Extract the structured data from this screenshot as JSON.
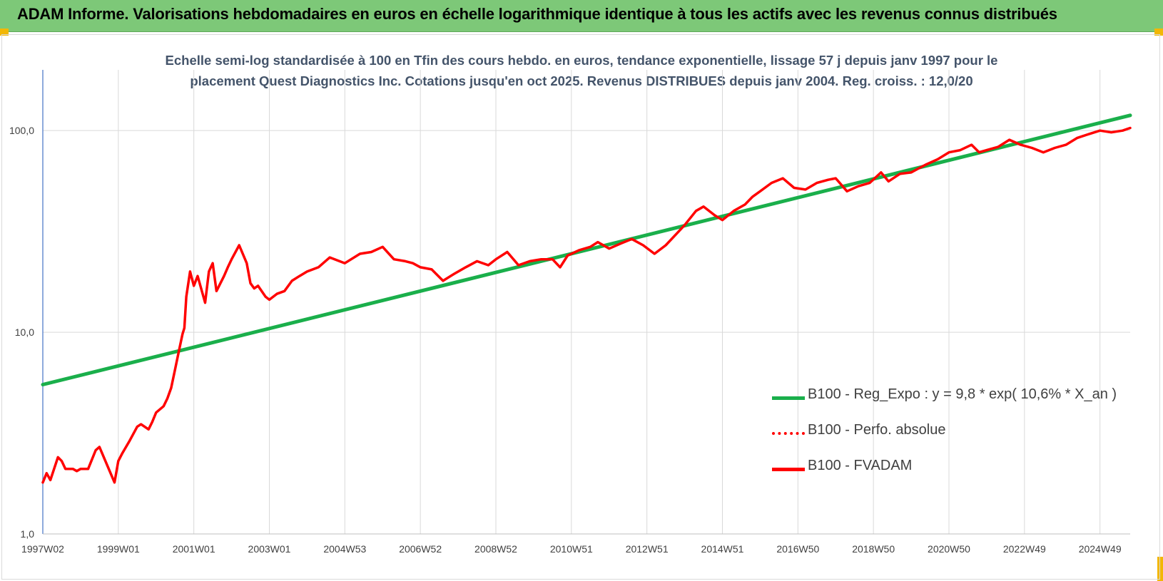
{
  "header": {
    "title": "ADAM Informe. Valorisations hebdomadaires en euros en échelle logarithmique identique à tous les actifs avec les revenus connus distribués"
  },
  "chart_data": {
    "type": "line",
    "title": "Echelle semi-log standardisée à 100 en Tfin des cours hebdo. en euros, tendance exponentielle, lissage 57 j depuis janv 1997 pour le placement Quest Diagnostics Inc. Cotations jusqu'en oct 2025. Revenus DISTRIBUES depuis janv 2004. Reg. croiss. : 12,0/20",
    "title_lines": [
      "Echelle semi-log standardisée à 100 en Tfin des cours hebdo. en euros, tendance exponentielle, lissage 57 j depuis janv 1997 pour le",
      "placement Quest Diagnostics Inc. Cotations jusqu'en oct 2025. Revenus DISTRIBUES depuis janv 2004. Reg. croiss. : 12,0/20"
    ],
    "y_scale": "log",
    "ylim": [
      1,
      200
    ],
    "y_ticks": [
      {
        "value": 1,
        "label": "1,0"
      },
      {
        "value": 10,
        "label": "10,0"
      },
      {
        "value": 100,
        "label": "100,0"
      }
    ],
    "x_start_year": 1997.0,
    "x_end_year": 2025.8,
    "x_ticks": [
      {
        "year": 1997.0,
        "label": "1997W02"
      },
      {
        "year": 1999.0,
        "label": "1999W01"
      },
      {
        "year": 2001.0,
        "label": "2001W01"
      },
      {
        "year": 2003.0,
        "label": "2003W01"
      },
      {
        "year": 2005.0,
        "label": "2004W53"
      },
      {
        "year": 2007.0,
        "label": "2006W52"
      },
      {
        "year": 2009.0,
        "label": "2008W52"
      },
      {
        "year": 2011.0,
        "label": "2010W51"
      },
      {
        "year": 2013.0,
        "label": "2012W51"
      },
      {
        "year": 2015.0,
        "label": "2014W51"
      },
      {
        "year": 2017.0,
        "label": "2016W50"
      },
      {
        "year": 2019.0,
        "label": "2018W50"
      },
      {
        "year": 2021.0,
        "label": "2020W50"
      },
      {
        "year": 2023.0,
        "label": "2022W49"
      },
      {
        "year": 2025.0,
        "label": "2024W49"
      }
    ],
    "grid": "vertical and horizontal",
    "legend_position": "bottom-right",
    "series": [
      {
        "name": "B100 - Reg_Expo : y = 9,8 * exp( 10,6% *  X_an )",
        "color": "#1aaf4b",
        "style": "solid",
        "x": [
          1997.0,
          2025.8
        ],
        "y": [
          5.5,
          119
        ]
      },
      {
        "name": "B100 - Perfo. absolue",
        "color": "#ff0000",
        "style": "dotted",
        "x": [],
        "y": []
      },
      {
        "name": "B100 - FVADAM",
        "color": "#ff0000",
        "style": "solid",
        "x": [
          1997.0,
          1997.1,
          1997.2,
          1997.4,
          1997.5,
          1997.6,
          1997.8,
          1997.9,
          1998.0,
          1998.2,
          1998.4,
          1998.5,
          1998.7,
          1998.9,
          1999.0,
          1999.1,
          1999.3,
          1999.5,
          1999.6,
          1999.8,
          1999.9,
          2000.0,
          2000.2,
          2000.3,
          2000.4,
          2000.5,
          2000.6,
          2000.7,
          2000.75,
          2000.8,
          2000.9,
          2001.0,
          2001.1,
          2001.3,
          2001.4,
          2001.5,
          2001.6,
          2001.8,
          2001.9,
          2002.0,
          2002.2,
          2002.4,
          2002.5,
          2002.6,
          2002.7,
          2002.9,
          2003.0,
          2003.2,
          2003.4,
          2003.6,
          2003.8,
          2004.0,
          2004.3,
          2004.6,
          2005.0,
          2005.4,
          2005.7,
          2006.0,
          2006.3,
          2006.6,
          2006.8,
          2007.0,
          2007.3,
          2007.6,
          2007.9,
          2008.2,
          2008.5,
          2008.8,
          2009.0,
          2009.3,
          2009.6,
          2009.9,
          2010.2,
          2010.5,
          2010.7,
          2010.9,
          2011.2,
          2011.5,
          2011.7,
          2012.0,
          2012.3,
          2012.6,
          2012.9,
          2013.2,
          2013.5,
          2013.8,
          2014.0,
          2014.3,
          2014.5,
          2014.8,
          2015.0,
          2015.3,
          2015.6,
          2015.8,
          2016.0,
          2016.3,
          2016.6,
          2016.9,
          2017.2,
          2017.5,
          2017.8,
          2018.0,
          2018.3,
          2018.6,
          2018.9,
          2019.2,
          2019.4,
          2019.7,
          2020.0,
          2020.2,
          2020.4,
          2020.7,
          2021.0,
          2021.3,
          2021.6,
          2021.8,
          2022.0,
          2022.3,
          2022.6,
          2022.9,
          2023.2,
          2023.5,
          2023.8,
          2024.1,
          2024.4,
          2024.7,
          2025.0,
          2025.3,
          2025.6,
          2025.8
        ],
        "y": [
          1.8,
          2.0,
          1.85,
          2.4,
          2.3,
          2.1,
          2.1,
          2.05,
          2.1,
          2.1,
          2.6,
          2.7,
          2.2,
          1.8,
          2.3,
          2.5,
          2.9,
          3.4,
          3.5,
          3.3,
          3.6,
          4.0,
          4.3,
          4.7,
          5.3,
          6.5,
          8.0,
          9.8,
          10.5,
          15.0,
          20.0,
          17.0,
          19.0,
          14.0,
          20.0,
          22.0,
          16.0,
          19.0,
          21.0,
          23.0,
          27.0,
          22.0,
          17.5,
          16.5,
          17.0,
          15.0,
          14.5,
          15.5,
          16.0,
          18.0,
          19.0,
          20.0,
          21.0,
          23.5,
          22.0,
          24.5,
          25.0,
          26.5,
          23.0,
          22.5,
          22.0,
          21.0,
          20.5,
          18.0,
          19.5,
          21.0,
          22.5,
          21.5,
          23.0,
          25.0,
          21.5,
          22.5,
          23.0,
          23.0,
          21.0,
          24.0,
          25.5,
          26.5,
          28.0,
          26.0,
          27.5,
          29.0,
          27.0,
          24.5,
          27.0,
          31.0,
          34.0,
          40.0,
          42.0,
          38.0,
          36.0,
          40.0,
          43.0,
          47.0,
          50.0,
          55.0,
          58.0,
          52.0,
          51.0,
          55.0,
          57.0,
          58.0,
          50.0,
          53.0,
          55.0,
          62.0,
          56.0,
          61.0,
          62.0,
          65.0,
          68.0,
          72.0,
          78.0,
          80.0,
          85.0,
          78.0,
          80.0,
          83.0,
          90.0,
          85.0,
          82.0,
          78.0,
          82.0,
          85.0,
          92.0,
          96.0,
          100.0,
          98.0,
          100.0,
          103.0
        ]
      }
    ]
  }
}
